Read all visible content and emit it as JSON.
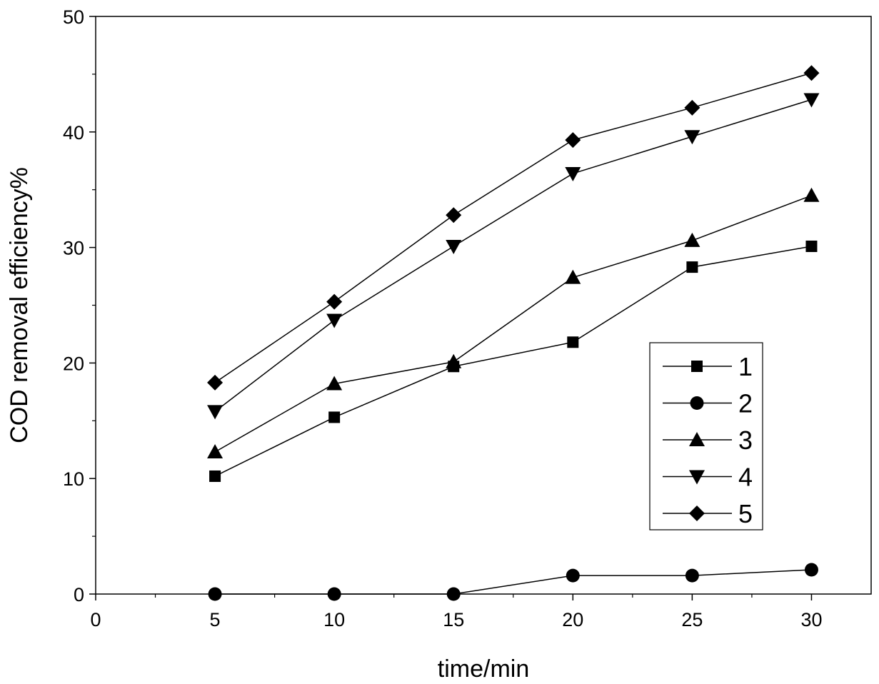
{
  "chart_data": {
    "type": "line",
    "title": "",
    "xlabel": "time/min",
    "ylabel": "COD removal efficiency%",
    "xlim": [
      0,
      32.5
    ],
    "ylim": [
      0,
      50
    ],
    "x_ticks": [
      0,
      5,
      10,
      15,
      20,
      25,
      30
    ],
    "y_ticks": [
      0,
      10,
      20,
      30,
      40,
      50
    ],
    "x_tick_labels": [
      "0",
      "5",
      "10",
      "15",
      "20",
      "25",
      "30"
    ],
    "y_tick_labels": [
      "0",
      "10",
      "20",
      "30",
      "40",
      "50"
    ],
    "grid": false,
    "legend_position": "right",
    "x": [
      5,
      10,
      15,
      20,
      25,
      30
    ],
    "series": [
      {
        "name": "1",
        "marker": "square",
        "values": [
          10.2,
          15.3,
          19.7,
          21.8,
          28.3,
          30.1
        ]
      },
      {
        "name": "2",
        "marker": "circle",
        "values": [
          0.0,
          0.0,
          0.0,
          1.6,
          1.6,
          2.1
        ]
      },
      {
        "name": "3",
        "marker": "triangle-up",
        "values": [
          12.3,
          18.2,
          20.1,
          27.4,
          30.6,
          34.5
        ]
      },
      {
        "name": "4",
        "marker": "triangle-down",
        "values": [
          15.8,
          23.7,
          30.1,
          36.4,
          39.6,
          42.8
        ]
      },
      {
        "name": "5",
        "marker": "diamond",
        "values": [
          18.3,
          25.3,
          32.8,
          39.3,
          42.1,
          45.1
        ]
      }
    ],
    "colors": {
      "line": "#000000",
      "marker": "#000000"
    }
  }
}
